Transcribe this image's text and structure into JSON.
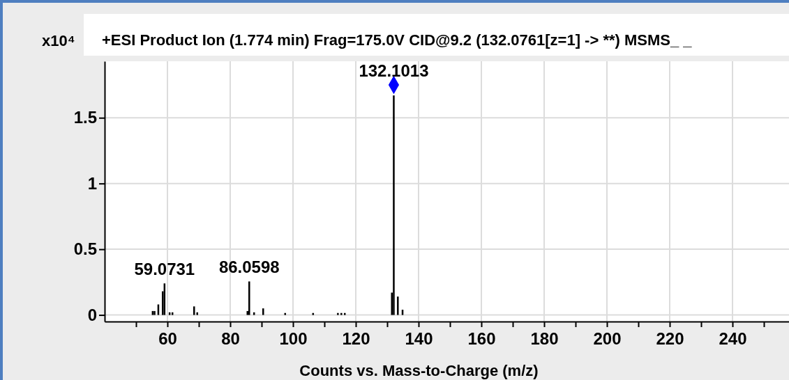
{
  "chart_data": {
    "type": "bar",
    "title": "+ESI Product Ion (1.774 min) Frag=175.0V CID@9.2 (132.0761[z=1] -> **) MSMS_ _",
    "xlabel": "Counts vs. Mass-to-Charge (m/z)",
    "ylabel": "x10⁴",
    "xlim": [
      40,
      258
    ],
    "ylim": [
      -0.05,
      1.93
    ],
    "xticks": [
      {
        "value": 50,
        "label": null
      },
      60,
      {
        "value": 70,
        "label": null
      },
      80,
      {
        "value": 90,
        "label": null
      },
      100,
      {
        "value": 110,
        "label": null
      },
      120,
      {
        "value": 130,
        "label": null
      },
      140,
      {
        "value": 150,
        "label": null
      },
      160,
      {
        "value": 170,
        "label": null
      },
      180,
      {
        "value": 190,
        "label": null
      },
      200,
      {
        "value": 210,
        "label": null
      },
      220,
      {
        "value": 230,
        "label": null
      },
      240,
      {
        "value": 250,
        "label": null
      }
    ],
    "yticks": [
      0,
      0.5,
      1,
      1.5
    ],
    "grid": true,
    "series": [
      {
        "color": "#000000",
        "x": [
          55.3,
          55.9,
          57.1,
          58.5,
          59.0731,
          60.7,
          61.6,
          68.5,
          69.5,
          85.5,
          86.0598,
          87.6,
          90.5,
          97.5,
          106.4,
          114.3,
          115.4,
          116.5,
          131.5,
          132.1013,
          133.4,
          134.9
        ],
        "values": [
          0.03,
          0.03,
          0.08,
          0.18,
          0.24,
          0.02,
          0.02,
          0.065,
          0.02,
          0.03,
          0.255,
          0.02,
          0.05,
          0.015,
          0.015,
          0.015,
          0.015,
          0.015,
          0.17,
          1.67,
          0.14,
          0.04
        ]
      },
      {
        "type": "scatter",
        "color": "#0000ff",
        "marker": "diamond",
        "x": [
          132.1013
        ],
        "values": [
          1.75
        ]
      }
    ],
    "annotations": [
      {
        "text": "59.0731",
        "x": 59.0731,
        "y": 0.24
      },
      {
        "text": "86.0598",
        "x": 86.0598,
        "y": 0.255
      },
      {
        "text": "132.1013",
        "x": 132.1013,
        "y": 1.75
      }
    ]
  }
}
